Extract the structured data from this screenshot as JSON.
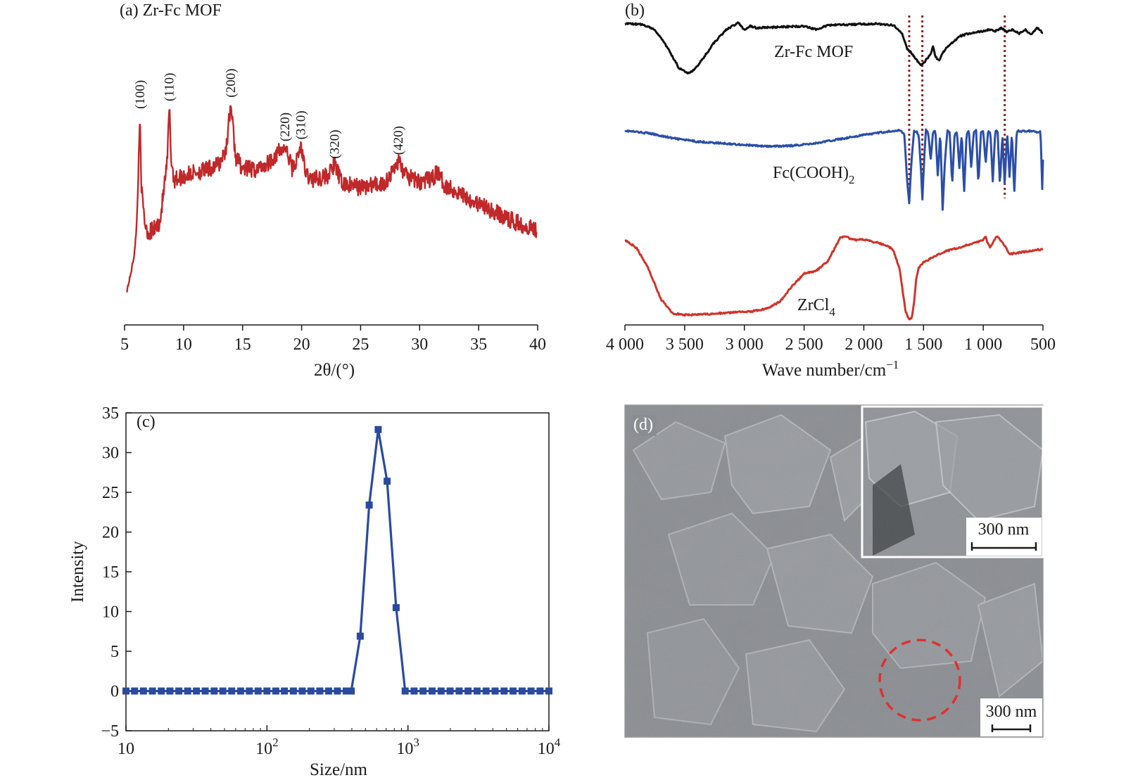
{
  "colors": {
    "axis": "#1a1a1a",
    "xrd": "#c0282a",
    "ir_zrfc": "#111111",
    "ir_fccooh": "#2b4ea8",
    "ir_zrcl4": "#d0342c",
    "marker": "#8b2020",
    "dls": "#2a4a9e",
    "sem_bg": "#8a8d91",
    "sem_circle": "#e03030"
  },
  "chart_data": [
    {
      "id": "a",
      "type": "line",
      "panel_label": "(a) Zr-Fc MOF",
      "xlabel": "2θ/(°)",
      "ylabel": "",
      "xlim": [
        5,
        40
      ],
      "xticks": [
        "5",
        "10",
        "15",
        "20",
        "25",
        "30",
        "35",
        "40"
      ],
      "xtick_values": [
        5,
        10,
        15,
        20,
        25,
        30,
        35,
        40
      ],
      "y_axis_shown": false,
      "series": [
        {
          "x": [
            5.2,
            5.5,
            5.8,
            6.0,
            6.15,
            6.3,
            6.45,
            6.7,
            7.0,
            7.5,
            8.0,
            8.3,
            8.6,
            8.8,
            8.95,
            9.2,
            9.6,
            10.2,
            11.0,
            12.0,
            13.0,
            13.6,
            14.0,
            14.4,
            15.0,
            16.0,
            17.0,
            18.0,
            18.6,
            19.2,
            19.6,
            19.95,
            20.3,
            20.8,
            21.5,
            22.2,
            22.8,
            23.4,
            24.0,
            25.0,
            26.0,
            27.0,
            27.6,
            28.2,
            28.8,
            29.5,
            30.0,
            31.0,
            31.5,
            32.0,
            33.0,
            34.0,
            35.0,
            36.0,
            37.0,
            38.0,
            39.0,
            39.9
          ],
          "y": [
            4,
            12,
            22,
            35,
            60,
            96,
            55,
            40,
            34,
            36,
            40,
            55,
            70,
            100,
            72,
            62,
            63,
            64,
            66,
            67,
            70,
            78,
            102,
            74,
            68,
            67,
            70,
            76,
            79,
            68,
            72,
            80,
            66,
            62,
            63,
            64,
            70,
            60,
            59,
            58,
            59,
            60,
            65,
            72,
            64,
            62,
            61,
            62,
            66,
            60,
            56,
            53,
            49,
            46,
            43,
            40,
            38,
            36
          ]
        }
      ],
      "peaks": [
        {
          "label": "(100)",
          "x": 6.3
        },
        {
          "label": "(110)",
          "x": 8.8
        },
        {
          "label": "(200)",
          "x": 14.0
        },
        {
          "label": "(220)",
          "x": 18.6
        },
        {
          "label": "(310)",
          "x": 19.95
        },
        {
          "label": "(320)",
          "x": 22.8
        },
        {
          "label": "(420)",
          "x": 28.2
        }
      ]
    },
    {
      "id": "b",
      "type": "line",
      "panel_label": "(b)",
      "xlabel": "Wave number/cm",
      "xlabel_sup": "−1",
      "ylabel": "",
      "xlim": [
        4000,
        500
      ],
      "xticks": [
        "4 000",
        "3 500",
        "3 000",
        "2 500",
        "2 000",
        "1 500",
        "1 000",
        "500"
      ],
      "xtick_values": [
        4000,
        3500,
        3000,
        2500,
        2000,
        1500,
        1000,
        500
      ],
      "y_axis_shown": false,
      "marker_lines": [
        1620,
        1510,
        820
      ],
      "series": [
        {
          "name": "Zr-Fc MOF",
          "offset": 2.0,
          "x": [
            4000,
            3850,
            3750,
            3650,
            3550,
            3480,
            3420,
            3350,
            3250,
            3150,
            3050,
            3000,
            2950,
            2900,
            2700,
            2500,
            2400,
            2300,
            2100,
            1900,
            1750,
            1680,
            1640,
            1600,
            1560,
            1530,
            1500,
            1470,
            1440,
            1420,
            1400,
            1370,
            1340,
            1300,
            1250,
            1200,
            1100,
            1000,
            950,
            900,
            850,
            800,
            750,
            700,
            650,
            600,
            550,
            500
          ],
          "y": [
            0.97,
            0.96,
            0.9,
            0.7,
            0.45,
            0.38,
            0.42,
            0.55,
            0.75,
            0.9,
            0.98,
            0.9,
            0.94,
            0.92,
            0.93,
            0.94,
            0.9,
            0.95,
            0.96,
            0.97,
            0.95,
            0.85,
            0.68,
            0.62,
            0.55,
            0.48,
            0.5,
            0.56,
            0.6,
            0.7,
            0.58,
            0.53,
            0.62,
            0.7,
            0.75,
            0.82,
            0.86,
            0.88,
            0.9,
            0.88,
            0.92,
            0.87,
            0.9,
            0.85,
            0.9,
            0.84,
            0.92,
            0.86
          ]
        },
        {
          "name": "Fc(COOH)",
          "name_sub": "2",
          "offset": 1.0,
          "x": [
            4000,
            3800,
            3600,
            3400,
            3200,
            3000,
            2800,
            2600,
            2400,
            2200,
            2000,
            1800,
            1700,
            1660,
            1640,
            1620,
            1600,
            1580,
            1560,
            1540,
            1520,
            1510,
            1495,
            1480,
            1460,
            1440,
            1420,
            1400,
            1380,
            1360,
            1340,
            1320,
            1300,
            1280,
            1260,
            1240,
            1220,
            1200,
            1180,
            1160,
            1140,
            1120,
            1100,
            1080,
            1060,
            1040,
            1020,
            1000,
            980,
            960,
            940,
            920,
            900,
            880,
            860,
            840,
            820,
            800,
            780,
            760,
            740,
            720,
            700,
            680,
            660,
            640,
            620,
            600,
            580,
            560,
            540,
            520,
            505,
            500
          ],
          "y": [
            0.95,
            0.92,
            0.86,
            0.82,
            0.8,
            0.78,
            0.76,
            0.77,
            0.8,
            0.85,
            0.9,
            0.94,
            0.96,
            0.9,
            0.4,
            0.08,
            0.6,
            0.95,
            0.94,
            0.9,
            0.45,
            0.1,
            0.6,
            0.96,
            0.92,
            0.6,
            0.94,
            0.95,
            0.4,
            0.94,
            0.0,
            0.6,
            0.95,
            0.93,
            0.3,
            0.9,
            0.94,
            0.5,
            0.92,
            0.2,
            0.9,
            0.95,
            0.5,
            0.93,
            0.95,
            0.3,
            0.92,
            0.95,
            0.55,
            0.94,
            0.92,
            0.35,
            0.94,
            0.95,
            0.3,
            0.9,
            0.3,
            0.95,
            0.4,
            0.93,
            0.2,
            0.94,
            0.95,
            0.94,
            0.95,
            0.94,
            0.95,
            0.94,
            0.95,
            0.94,
            0.93,
            0.95,
            0.2,
            0.6
          ]
        },
        {
          "name": "ZrCl",
          "name_sub": "4",
          "offset": 0.0,
          "x": [
            4000,
            3900,
            3800,
            3700,
            3600,
            3500,
            3300,
            3100,
            2950,
            2800,
            2700,
            2600,
            2500,
            2400,
            2300,
            2200,
            2150,
            2100,
            2000,
            1900,
            1800,
            1750,
            1700,
            1680,
            1650,
            1620,
            1600,
            1580,
            1560,
            1540,
            1520,
            1500,
            1450,
            1400,
            1300,
            1200,
            1100,
            1050,
            1000,
            980,
            960,
            940,
            900,
            880,
            860,
            820,
            780,
            700,
            600,
            500
          ],
          "y": [
            0.95,
            0.85,
            0.6,
            0.25,
            0.08,
            0.06,
            0.07,
            0.09,
            0.1,
            0.14,
            0.22,
            0.4,
            0.55,
            0.58,
            0.7,
            0.97,
            0.99,
            0.95,
            0.95,
            0.92,
            0.88,
            0.82,
            0.6,
            0.4,
            0.1,
            0.0,
            0.02,
            0.2,
            0.5,
            0.62,
            0.66,
            0.68,
            0.72,
            0.76,
            0.82,
            0.86,
            0.9,
            0.92,
            0.95,
            0.99,
            0.9,
            0.86,
            0.96,
            1.0,
            0.95,
            0.88,
            0.78,
            0.8,
            0.82,
            0.84
          ]
        }
      ]
    },
    {
      "id": "c",
      "type": "line",
      "panel_label": "(c)",
      "xlabel": "Size/nm",
      "ylabel": "Intensity",
      "xscale": "log",
      "xlim": [
        10,
        10000
      ],
      "ylim": [
        -5,
        35
      ],
      "xtick_values": [
        10,
        100,
        1000,
        10000
      ],
      "xtick_base": [
        "10",
        "10",
        "10",
        "10"
      ],
      "xtick_exp": [
        "",
        "2",
        "3",
        "4"
      ],
      "yticks": [
        "−5",
        "0",
        "5",
        "10",
        "15",
        "20",
        "25",
        "30",
        "35"
      ],
      "ytick_values": [
        -5,
        0,
        5,
        10,
        15,
        20,
        25,
        30,
        35
      ],
      "series": [
        {
          "x": [
            10,
            11.5,
            13.3,
            15.4,
            17.8,
            20.5,
            23.7,
            27.4,
            31.6,
            36.5,
            42.2,
            48.7,
            56.2,
            65,
            75,
            86.6,
            100,
            115.5,
            133,
            154,
            178,
            205,
            237,
            274,
            316,
            365,
            396,
            459,
            531,
            615,
            712,
            825,
            955,
            1106,
            1281,
            1484,
            1719,
            1991,
            2306,
            2671,
            3094,
            3584,
            4151,
            4808,
            5569,
            6451,
            7472,
            8655,
            10000
          ],
          "y": [
            0,
            0,
            0,
            0,
            0,
            0,
            0,
            0,
            0,
            0,
            0,
            0,
            0,
            0,
            0,
            0,
            0,
            0,
            0,
            0,
            0,
            0,
            0,
            0,
            0,
            0,
            0,
            6.9,
            23.4,
            32.9,
            26.4,
            10.5,
            0,
            0,
            0,
            0,
            0,
            0,
            0,
            0,
            0,
            0,
            0,
            0,
            0,
            0,
            0,
            0,
            0
          ]
        }
      ]
    }
  ],
  "sem": {
    "panel_label": "(d)",
    "inset_scale_label": "300 nm",
    "main_scale_label": "300 nm"
  }
}
